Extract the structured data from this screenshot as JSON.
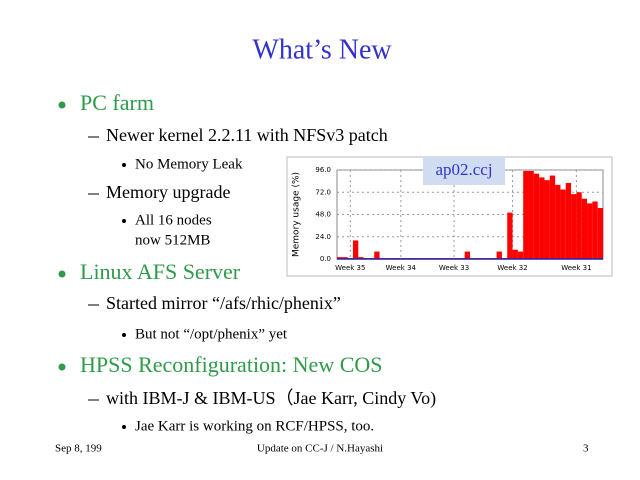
{
  "slide": {
    "title": "What’s New",
    "items": [
      {
        "level": 1,
        "text": "PC farm"
      },
      {
        "level": 2,
        "text": "Newer kernel 2.2.11 with NFSv3 patch"
      },
      {
        "level": 3,
        "text": "No Memory Leak"
      },
      {
        "level": 2,
        "text": "Memory upgrade"
      },
      {
        "level": 3,
        "text": "All 16 nodes"
      },
      {
        "level": 0,
        "text": "now 512MB"
      },
      {
        "level": 1,
        "text": "Linux AFS Server"
      },
      {
        "level": 2,
        "text": "Started mirror “/afs/rhic/phenix”"
      },
      {
        "level": 3,
        "text": "But not “/opt/phenix” yet"
      },
      {
        "level": 1,
        "text": "HPSS Reconfiguration: New COS"
      },
      {
        "level": 2,
        "text": "with IBM-J & IBM-US（Jae Karr, Cindy Vo)"
      },
      {
        "level": 3,
        "text": "Jae Karr is working on RCF/HPSS, too."
      }
    ],
    "footer": {
      "left": "Sep 8, 199",
      "center": "Update on CC-J / N.Hayashi",
      "right": "3"
    }
  },
  "chart_data": {
    "type": "bar",
    "title": "ap02.ccj",
    "y_label": "Memory usage (%)",
    "color": "#ff0000",
    "x": [
      0,
      1,
      2,
      3,
      4,
      5,
      6,
      7,
      8,
      9,
      10,
      11,
      12,
      13,
      14,
      15,
      16,
      17,
      18,
      19,
      20,
      21,
      22,
      23,
      24,
      25,
      26,
      27,
      28,
      29,
      30,
      31,
      32,
      33,
      34,
      35,
      36,
      37,
      38,
      39,
      40,
      41,
      42,
      43,
      44,
      45,
      46,
      47,
      48,
      49
    ],
    "values": [
      2,
      2,
      1,
      20,
      2,
      1,
      1,
      8,
      1,
      1,
      1,
      1,
      1,
      1,
      1,
      1,
      1,
      1,
      1,
      1,
      1,
      1,
      1,
      1,
      8,
      1,
      1,
      1,
      1,
      1,
      8,
      1,
      50,
      10,
      8,
      95,
      95,
      92,
      88,
      85,
      90,
      80,
      75,
      82,
      70,
      72,
      65,
      60,
      62,
      55
    ],
    "xlim": [
      0,
      50
    ],
    "xticks": [
      {
        "value": 2.5,
        "label": "Week 35"
      },
      {
        "value": 12,
        "label": "Week 34"
      },
      {
        "value": 22,
        "label": "Week 33"
      },
      {
        "value": 33,
        "label": "Week 32"
      },
      {
        "value": 45,
        "label": "Week 31"
      }
    ],
    "ylim": [
      0,
      96
    ],
    "yticks": [
      {
        "value": 0,
        "label": "0.0"
      },
      {
        "value": 24,
        "label": "24.0"
      },
      {
        "value": 48,
        "label": "48.0"
      },
      {
        "value": 72,
        "label": "72.0"
      },
      {
        "value": 96,
        "label": "96.0"
      }
    ],
    "grid": true
  }
}
